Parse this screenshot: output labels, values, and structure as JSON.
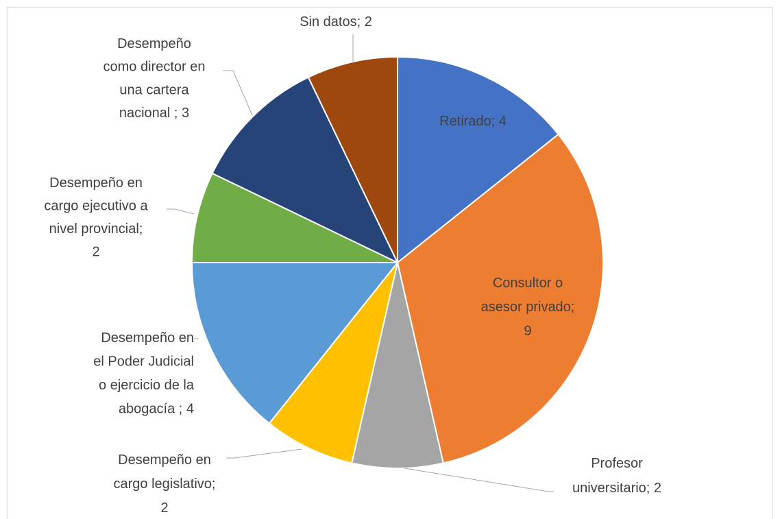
{
  "chart_data": {
    "type": "pie",
    "values": [
      4,
      9,
      2,
      2,
      4,
      2,
      3,
      2
    ],
    "value_labels": [
      [
        "Retirado; 4"
      ],
      [
        "Consultor o",
        "asesor privado;",
        "9"
      ],
      [
        "Profesor",
        "universitario; 2"
      ],
      [
        "Desempeño en",
        "cargo legislativo;",
        "2"
      ],
      [
        "Desempeño en",
        "el Poder Judicial",
        "o ejercicio de la",
        "abogacía ; 4"
      ],
      [
        "Desempeño en",
        "cargo ejecutivo a",
        "nivel provincial;",
        "2"
      ],
      [
        "Desempeño",
        "como director en",
        "una cartera",
        "nacional ; 3"
      ],
      [
        "Sin datos; 2"
      ]
    ],
    "colors": [
      "#4472c4",
      "#ed7d31",
      "#a5a5a5",
      "#ffc000",
      "#5b9bd5",
      "#70ad47",
      "#264478",
      "#9e480e"
    ]
  }
}
